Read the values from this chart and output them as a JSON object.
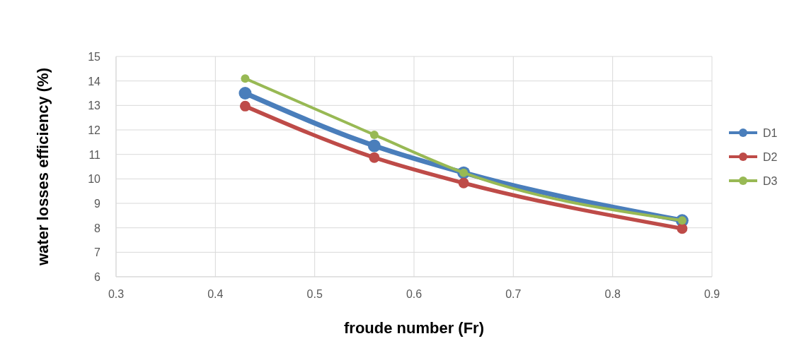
{
  "chart_data": {
    "type": "line",
    "xlabel": "froude number (Fr)",
    "ylabel": "water losses efficiency (%)",
    "x": [
      0.43,
      0.56,
      0.65,
      0.87
    ],
    "series": [
      {
        "name": "D1",
        "color": "#4a7ebb",
        "values": [
          13.5,
          11.35,
          10.25,
          8.3
        ]
      },
      {
        "name": "D2",
        "color": "#be4b48",
        "values": [
          12.97,
          10.87,
          9.83,
          7.97
        ]
      },
      {
        "name": "D3",
        "color": "#98b954",
        "values": [
          14.1,
          11.8,
          10.25,
          8.3
        ]
      }
    ],
    "xlim": [
      0.3,
      0.9
    ],
    "xticks": [
      0.3,
      0.4,
      0.5,
      0.6,
      0.7,
      0.8,
      0.9
    ],
    "ylim": [
      6,
      15
    ],
    "yticks": [
      6,
      7,
      8,
      9,
      10,
      11,
      12,
      13,
      14,
      15
    ],
    "grid": true,
    "legend": "right",
    "marker": "circle",
    "line_style": "solid"
  }
}
